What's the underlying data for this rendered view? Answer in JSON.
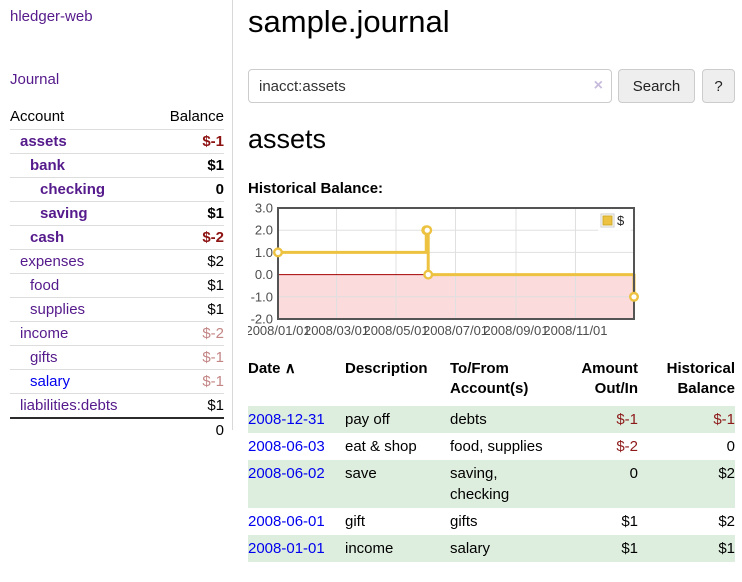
{
  "app": {
    "brand": "hledger-web",
    "nav_journal": "Journal"
  },
  "sidebar": {
    "accounts_header": {
      "account": "Account",
      "balance": "Balance"
    },
    "rows": [
      {
        "name": "assets",
        "indent": 1,
        "bold": true,
        "balance": "$-1",
        "balance_style": "neg-strong",
        "link_style": "visited"
      },
      {
        "name": "bank",
        "indent": 2,
        "bold": true,
        "balance": "$1",
        "balance_style": "pos",
        "link_style": "visited"
      },
      {
        "name": "checking",
        "indent": 3,
        "bold": true,
        "balance": "0",
        "balance_style": "pos",
        "link_style": "visited"
      },
      {
        "name": "saving",
        "indent": 3,
        "bold": true,
        "balance": "$1",
        "balance_style": "pos",
        "link_style": "visited"
      },
      {
        "name": "cash",
        "indent": 2,
        "bold": true,
        "balance": "$-2",
        "balance_style": "neg-strong",
        "link_style": "visited"
      },
      {
        "name": "expenses",
        "indent": 1,
        "bold": false,
        "balance": "$2",
        "balance_style": "pos",
        "link_style": "visited"
      },
      {
        "name": "food",
        "indent": 2,
        "bold": false,
        "balance": "$1",
        "balance_style": "pos",
        "link_style": "visited"
      },
      {
        "name": "supplies",
        "indent": 2,
        "bold": false,
        "balance": "$1",
        "balance_style": "pos",
        "link_style": "visited"
      },
      {
        "name": "income",
        "indent": 1,
        "bold": false,
        "balance": "$-2",
        "balance_style": "neg-muted",
        "link_style": "visited"
      },
      {
        "name": "gifts",
        "indent": 2,
        "bold": false,
        "balance": "$-1",
        "balance_style": "neg-muted",
        "link_style": "visited"
      },
      {
        "name": "salary",
        "indent": 2,
        "bold": false,
        "balance": "$-1",
        "balance_style": "neg-muted",
        "link_style": "unvisited"
      },
      {
        "name": "liabilities:debts",
        "indent": 1,
        "bold": false,
        "balance": "$1",
        "balance_style": "pos",
        "link_style": "visited"
      }
    ],
    "total": "0"
  },
  "header": {
    "title": "sample.journal"
  },
  "search": {
    "value": "inacct:assets",
    "clear_icon": "×",
    "button": "Search",
    "help_button": "?"
  },
  "account_page": {
    "heading": "assets",
    "chart_label": "Historical Balance:"
  },
  "chart_data": {
    "type": "line",
    "step": true,
    "series": [
      {
        "name": "$",
        "color": "#edc240",
        "points": [
          [
            "2008-01-01",
            1
          ],
          [
            "2008-06-01",
            2
          ],
          [
            "2008-06-02",
            2
          ],
          [
            "2008-06-03",
            0
          ],
          [
            "2008-12-31",
            -1
          ]
        ]
      }
    ],
    "xlim": [
      "2008-01-01",
      "2008-12-31"
    ],
    "ylim": [
      -2,
      3
    ],
    "yticks": [
      "3.0",
      "2.0",
      "1.0",
      "0.0",
      "-1.0",
      "-2.0"
    ],
    "ytick_values": [
      3,
      2,
      1,
      0,
      -1,
      -2
    ],
    "xticks": [
      "2008/01/01",
      "2008/03/01",
      "2008/05/01",
      "2008/07/01",
      "2008/09/01",
      "2008/11/01"
    ],
    "legend": {
      "label": "$",
      "position": "top-right"
    },
    "grid": true,
    "colors": {
      "negative_region": "#fbdbdb",
      "zero_line": "#a40000",
      "border": "#545454",
      "gridline": "#e0e0e0",
      "tick_text": "#4d4d4d",
      "marker_fill": "#ffffff"
    }
  },
  "register": {
    "columns": [
      {
        "label": "Date",
        "align": "left",
        "sort_icon": "∧"
      },
      {
        "label": "Description",
        "align": "left"
      },
      {
        "label": "To/From Account(s)",
        "align": "left"
      },
      {
        "label": "Amount Out/In",
        "align": "right"
      },
      {
        "label": "Historical Balance",
        "align": "right"
      }
    ],
    "rows": [
      {
        "date": "2008-12-31",
        "description": "pay off",
        "accounts": "debts",
        "amount": "$-1",
        "amount_neg": true,
        "balance": "$-1",
        "balance_neg": true
      },
      {
        "date": "2008-06-03",
        "description": "eat & shop",
        "accounts": "food, supplies",
        "amount": "$-2",
        "amount_neg": true,
        "balance": "0",
        "balance_neg": false
      },
      {
        "date": "2008-06-02",
        "description": "save",
        "accounts": "saving, checking",
        "amount": "0",
        "amount_neg": false,
        "balance": "$2",
        "balance_neg": false
      },
      {
        "date": "2008-06-01",
        "description": "gift",
        "accounts": "gifts",
        "amount": "$1",
        "amount_neg": false,
        "balance": "$2",
        "balance_neg": false
      },
      {
        "date": "2008-01-01",
        "description": "income",
        "accounts": "salary",
        "amount": "$1",
        "amount_neg": false,
        "balance": "$1",
        "balance_neg": false
      }
    ]
  }
}
